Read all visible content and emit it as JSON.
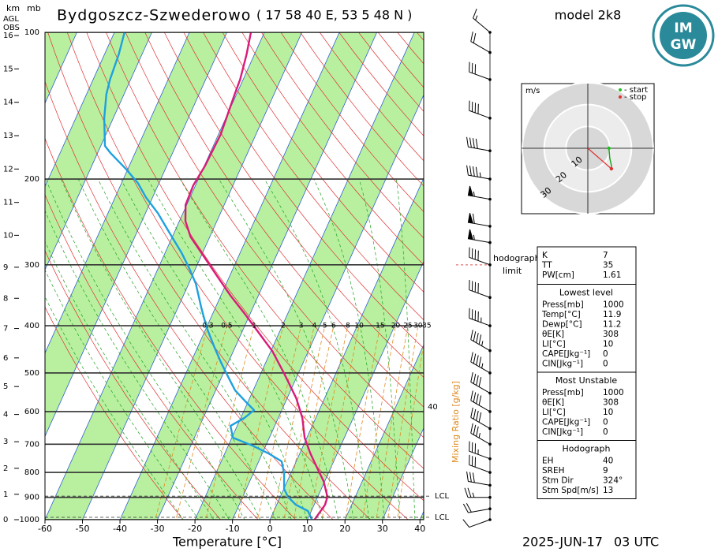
{
  "header": {
    "km": "km",
    "mb": "mb",
    "agl": "AGL",
    "obs": "OBS",
    "title": "Bydgoszcz-Szwederowo",
    "coords": "( 17 58 40 E, 53 5 48 N )",
    "model": "model 2k8",
    "logo_top": "IM",
    "logo_bottom": "GW",
    "date": "2025-JUN-17",
    "time": "03 UTC"
  },
  "chart_data": {
    "type": "skewt",
    "xlabel": "Temperature [°C]",
    "xlim": [
      -60,
      41
    ],
    "xticks": [
      -60,
      -50,
      -40,
      -30,
      -20,
      -10,
      0,
      10,
      20,
      30,
      40
    ],
    "plim": [
      1000,
      100
    ],
    "pticks": [
      100,
      200,
      300,
      400,
      500,
      600,
      700,
      800,
      900,
      1000
    ],
    "kmticks": [
      0,
      1,
      2,
      3,
      4,
      5,
      6,
      7,
      8,
      9,
      10,
      11,
      12,
      13,
      14,
      15,
      16
    ],
    "series": [
      {
        "color": "#d81b7a",
        "pressure": [
          1000,
          932,
          898,
          834,
          773,
          731,
          679,
          618,
          563,
          500,
          451,
          418,
          381,
          347,
          316,
          288,
          263,
          244,
          226,
          206,
          188,
          162,
          134,
          125,
          111,
          100
        ],
        "values": [
          11.9,
          12.9,
          12.6,
          9.7,
          5.7,
          2.8,
          -0.6,
          -3.6,
          -7.6,
          -13.9,
          -19.6,
          -24.7,
          -30.9,
          -37.4,
          -43.4,
          -49.3,
          -55.1,
          -58.4,
          -60.3,
          -60.6,
          -59.8,
          -59.4,
          -60.5,
          -60.8,
          -62.1,
          -63.6
        ]
      },
      {
        "color": "#1ea0e0",
        "pressure": [
          1000,
          960,
          932,
          898,
          865,
          803,
          759,
          731,
          705,
          679,
          642,
          618,
          596,
          570,
          543,
          513,
          476,
          443,
          403,
          367,
          328,
          305,
          283,
          258,
          235,
          218,
          204,
          191,
          177,
          171,
          150,
          134,
          125,
          111,
          100
        ],
        "values": [
          11.2,
          9.1,
          5.1,
          2.1,
          0.1,
          -1.8,
          -3.9,
          -8.4,
          -13.5,
          -19.7,
          -21.8,
          -19.0,
          -17.4,
          -21.0,
          -24.8,
          -27.9,
          -31.9,
          -35.5,
          -40.0,
          -43.8,
          -48.1,
          -51.7,
          -55.7,
          -61.2,
          -66.7,
          -71.8,
          -75.6,
          -80.4,
          -86.5,
          -88.9,
          -92.4,
          -94.7,
          -95.5,
          -96.2,
          -97.3
        ]
      }
    ],
    "mixing_ratio": {
      "label": "Mixing Ratio [g/kg]",
      "values": [
        0.3,
        0.5,
        1,
        2,
        3,
        4,
        5,
        6,
        8,
        10,
        15,
        20,
        25,
        30,
        35
      ],
      "label_pressure": 400,
      "color": "#e08a1e",
      "side_label": "40"
    },
    "lcl": {
      "labels": [
        "LCL",
        "LCL"
      ],
      "pressure": [
        905,
        1000
      ]
    },
    "hodograph_limit": {
      "labels": [
        "hodograph",
        "limit"
      ],
      "pressure": 300
    },
    "wind": {
      "pressure": [
        1000,
        950,
        900,
        850,
        800,
        750,
        700,
        650,
        600,
        550,
        500,
        450,
        400,
        350,
        300,
        270,
        250,
        220,
        200,
        175,
        150,
        125,
        110,
        100
      ],
      "direction": [
        250,
        260,
        270,
        280,
        290,
        290,
        300,
        300,
        300,
        300,
        300,
        300,
        290,
        290,
        290,
        280,
        280,
        280,
        280,
        280,
        290,
        290,
        300,
        310
      ],
      "speed": [
        10,
        20,
        25,
        30,
        30,
        35,
        35,
        40,
        40,
        40,
        45,
        45,
        45,
        40,
        40,
        55,
        60,
        55,
        45,
        40,
        40,
        30,
        20,
        15
      ]
    },
    "hodograph": {
      "unit": "m/s",
      "rings": [
        10,
        20,
        30
      ],
      "start": "- start",
      "stop": "- stop",
      "u": [
        9.7,
        10.0,
        10.8,
        10.8
      ],
      "v": [
        0,
        -4.3,
        -7.9,
        -9.4
      ]
    }
  },
  "table": {
    "sections": [
      {
        "rows": [
          [
            "K",
            "7"
          ],
          [
            "TT",
            "35"
          ],
          [
            "PW[cm]",
            "1.61"
          ]
        ]
      },
      {
        "title": "Lowest level",
        "rows": [
          [
            "Press[mb]",
            "1000"
          ],
          [
            "Temp[°C]",
            "11.9"
          ],
          [
            "Dewp[°C]",
            "11.2"
          ],
          [
            "θE[K]",
            "308"
          ],
          [
            "LI[°C]",
            "10"
          ],
          [
            "CAPE[Jkg⁻¹]",
            "0"
          ],
          [
            "CIN[Jkg⁻¹]",
            "0"
          ]
        ]
      },
      {
        "title": "Most Unstable",
        "rows": [
          [
            "Press[mb]",
            "1000"
          ],
          [
            "θE[K]",
            "308"
          ],
          [
            "LI[°C]",
            "10"
          ],
          [
            "CAPE[Jkg⁻¹]",
            "0"
          ],
          [
            "CIN[Jkg⁻¹]",
            "0"
          ]
        ]
      },
      {
        "title": "Hodograph",
        "rows": [
          [
            "EH",
            "40"
          ],
          [
            "SREH",
            "9"
          ],
          [
            "Stm Dir",
            "324°"
          ],
          [
            "Stm Spd[m/s]",
            "13"
          ]
        ]
      }
    ]
  }
}
